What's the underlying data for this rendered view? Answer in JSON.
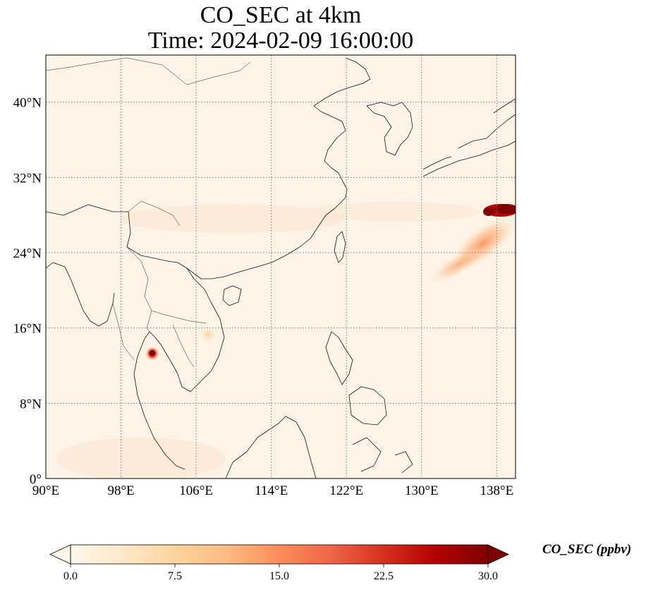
{
  "title_line1": "CO_SEC at 4km",
  "title_line2": "Time: 2024-02-09 16:00:00",
  "map": {
    "lon_range": [
      90,
      140
    ],
    "lat_range": [
      0,
      45
    ],
    "lon_ticks": [
      90,
      98,
      106,
      114,
      122,
      130,
      138
    ],
    "lat_ticks": [
      0,
      8,
      16,
      24,
      32,
      40
    ],
    "lon_tick_labels": [
      "90°E",
      "98°E",
      "106°E",
      "114°E",
      "122°E",
      "130°E",
      "138°E"
    ],
    "lat_tick_labels": [
      "0°",
      "8°N",
      "16°N",
      "24°N",
      "32°N",
      "40°N"
    ],
    "gridlines": true,
    "gridline_style": "dotted"
  },
  "colorbar": {
    "label": "CO_SEC (ppbv)",
    "min": 0.0,
    "max": 30.0,
    "ticks": [
      0.0,
      7.5,
      15.0,
      22.5,
      30.0
    ],
    "tick_labels": [
      "0.0",
      "7.5",
      "15.0",
      "22.5",
      "30.0"
    ],
    "extend": "both",
    "colormap": "OrRd",
    "colors": [
      "#fff7ec",
      "#fee8c8",
      "#fdd49e",
      "#fdbb84",
      "#fc8d59",
      "#ef6548",
      "#d7301f",
      "#b30000",
      "#7f0000"
    ]
  },
  "hotspots": [
    {
      "name": "east-of-japan plume",
      "lon": 138.5,
      "lat": 28.5,
      "value": 30
    },
    {
      "name": "cambodia hotspot",
      "lon": 101.5,
      "lat": 13.5,
      "value": 26
    },
    {
      "name": "vietnam hotspot",
      "lon": 107.5,
      "lat": 15.5,
      "value": 6
    }
  ]
}
